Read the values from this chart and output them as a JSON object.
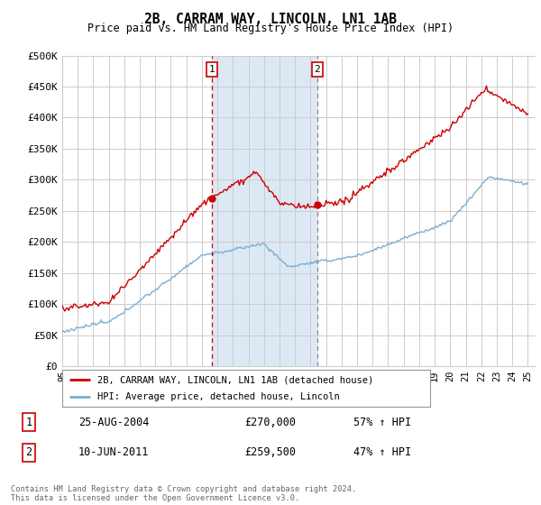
{
  "title": "2B, CARRAM WAY, LINCOLN, LN1 1AB",
  "subtitle": "Price paid vs. HM Land Registry's House Price Index (HPI)",
  "ylim": [
    0,
    500000
  ],
  "yticks": [
    0,
    50000,
    100000,
    150000,
    200000,
    250000,
    300000,
    350000,
    400000,
    450000,
    500000
  ],
  "ytick_labels": [
    "£0",
    "£50K",
    "£100K",
    "£150K",
    "£200K",
    "£250K",
    "£300K",
    "£350K",
    "£400K",
    "£450K",
    "£500K"
  ],
  "hpi_color": "#7bafd4",
  "price_color": "#cc0000",
  "marker1_year": 2004.65,
  "marker1_value": 270000,
  "marker2_year": 2011.44,
  "marker2_value": 259500,
  "annotation1": [
    "1",
    "25-AUG-2004",
    "£270,000",
    "57% ↑ HPI"
  ],
  "annotation2": [
    "2",
    "10-JUN-2011",
    "£259,500",
    "47% ↑ HPI"
  ],
  "legend_line1": "2B, CARRAM WAY, LINCOLN, LN1 1AB (detached house)",
  "legend_line2": "HPI: Average price, detached house, Lincoln",
  "footer": "Contains HM Land Registry data © Crown copyright and database right 2024.\nThis data is licensed under the Open Government Licence v3.0.",
  "shaded_region_color": "#dde8f5",
  "background_color": "#ffffff",
  "grid_color": "#cccccc"
}
